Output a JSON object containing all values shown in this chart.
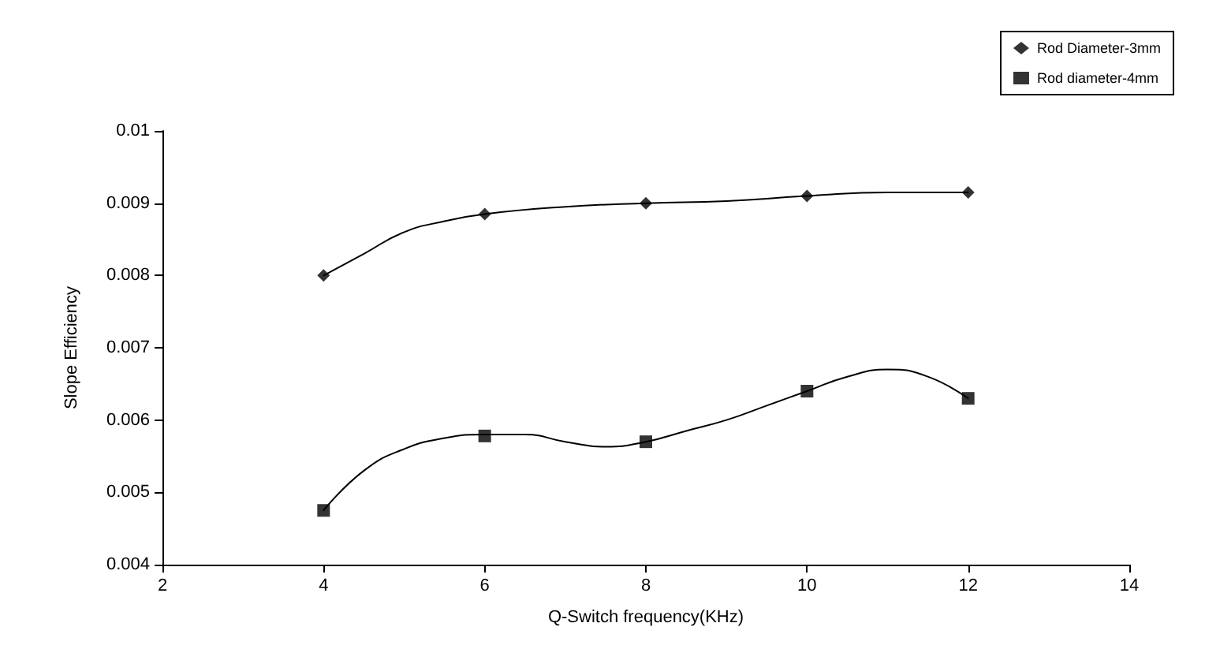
{
  "chart_data": {
    "type": "scatter",
    "xlabel": "Q-Switch frequency(KHz)",
    "ylabel": "Slope Efficiency",
    "xlim": [
      2,
      14
    ],
    "xticks": [
      2,
      4,
      6,
      8,
      10,
      12,
      14
    ],
    "ylim": [
      0.004,
      0.01
    ],
    "yticks": [
      0.004,
      0.005,
      0.006,
      0.007,
      0.008,
      0.009,
      0.01
    ],
    "grid": false,
    "legend": "top right",
    "series": [
      {
        "name": "Rod Diameter-3mm",
        "color": "#000000",
        "marker": "diamond",
        "x": [
          4,
          6,
          8,
          10,
          12
        ],
        "values": [
          0.008,
          0.00885,
          0.009,
          0.0091,
          0.00915
        ]
      },
      {
        "name": "Rod diameter-4mm",
        "color": "#000000",
        "marker": "square",
        "x": [
          4,
          6,
          8,
          10,
          12
        ],
        "values": [
          0.00475,
          0.00578,
          0.0057,
          0.0064,
          0.0063
        ]
      },
      {
        "type": "line",
        "color": "#000000",
        "marker": "none",
        "line_style": "solid",
        "x": [
          4,
          4.5,
          5,
          5.5,
          6,
          7,
          8,
          9,
          10,
          11,
          12
        ],
        "values": [
          0.008,
          0.0083,
          0.0086,
          0.00875,
          0.00885,
          0.00895,
          0.009,
          0.00903,
          0.0091,
          0.00915,
          0.00915
        ]
      },
      {
        "type": "line",
        "color": "#000000",
        "marker": "none",
        "line_style": "solid",
        "x": [
          4,
          4.5,
          5,
          5.5,
          6,
          6.5,
          7,
          7.5,
          8,
          8.5,
          9,
          9.5,
          10,
          10.5,
          11,
          11.5,
          12
        ],
        "values": [
          0.00475,
          0.0053,
          0.0056,
          0.00575,
          0.0058,
          0.0058,
          0.0057,
          0.00563,
          0.0057,
          0.00585,
          0.006,
          0.0062,
          0.0064,
          0.0066,
          0.0067,
          0.0066,
          0.0063
        ]
      }
    ]
  }
}
